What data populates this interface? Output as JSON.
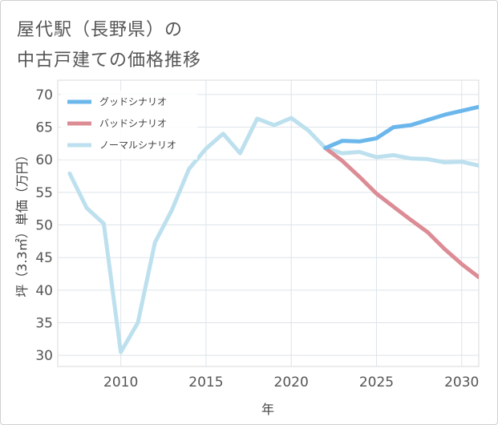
{
  "title": [
    "屋代駅（長野県）の",
    "中古戸建ての価格推移"
  ],
  "chart_data": {
    "type": "line",
    "xlabel": "年",
    "ylabel": "坪（3.3㎡）単価（万円）",
    "xlim": [
      2006.3,
      2031
    ],
    "ylim": [
      28.3,
      72.2
    ],
    "x_ticks": [
      2010,
      2015,
      2020,
      2025,
      2030
    ],
    "y_ticks": [
      30,
      35,
      40,
      45,
      50,
      55,
      60,
      65,
      70
    ],
    "grid": true,
    "legend_position": "top-left",
    "series": [
      {
        "name": "グッドシナリオ",
        "color": "#6bb7ec",
        "x": [
          2022,
          2023,
          2024,
          2025,
          2026,
          2027,
          2028,
          2029,
          2030,
          2031
        ],
        "y": [
          61.8,
          62.9,
          62.8,
          63.3,
          65.0,
          65.3,
          66.1,
          66.9,
          67.5,
          68.1
        ]
      },
      {
        "name": "バッドシナリオ",
        "color": "#dc8c95",
        "x": [
          2022,
          2023,
          2024,
          2025,
          2026,
          2027,
          2028,
          2029,
          2030,
          2031
        ],
        "y": [
          61.8,
          59.8,
          57.4,
          54.8,
          52.8,
          50.8,
          48.9,
          46.3,
          44.0,
          42.0
        ]
      },
      {
        "name": "ノーマルシナリオ",
        "color": "#bde0ee",
        "x": [
          2007,
          2008,
          2009,
          2010,
          2011,
          2012,
          2013,
          2014,
          2015,
          2016,
          2017,
          2018,
          2019,
          2020,
          2021,
          2022,
          2023,
          2024,
          2025,
          2026,
          2027,
          2028,
          2029,
          2030,
          2031
        ],
        "y": [
          57.9,
          52.6,
          50.2,
          30.5,
          35.0,
          47.3,
          52.3,
          58.6,
          61.7,
          64.0,
          61.0,
          66.3,
          65.3,
          66.4,
          64.5,
          61.8,
          61.0,
          61.2,
          60.4,
          60.7,
          60.2,
          60.1,
          59.6,
          59.7,
          59.1
        ]
      }
    ]
  }
}
